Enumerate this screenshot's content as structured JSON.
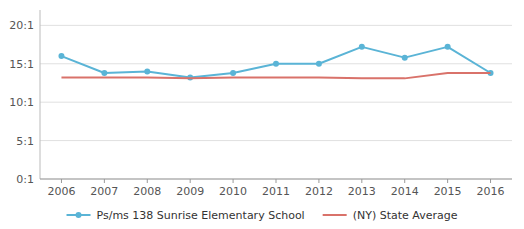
{
  "chart_data": {
    "type": "line",
    "x": [
      2006,
      2007,
      2008,
      2009,
      2010,
      2011,
      2012,
      2013,
      2014,
      2015,
      2016
    ],
    "series": [
      {
        "name": "Ps/ms 138 Sunrise Elementary School",
        "color": "#5ab4d6",
        "marker": "circle",
        "values": [
          16.0,
          13.8,
          14.0,
          13.2,
          13.8,
          15.0,
          15.0,
          17.2,
          15.8,
          17.2,
          13.8
        ]
      },
      {
        "name": "(NY) State Average",
        "color": "#d9726a",
        "marker": "none",
        "values": [
          13.2,
          13.2,
          13.2,
          13.1,
          13.2,
          13.2,
          13.2,
          13.1,
          13.1,
          13.8,
          13.8
        ]
      }
    ],
    "xlim": [
      2005.5,
      2016.5
    ],
    "xticks": [
      2006,
      2007,
      2008,
      2009,
      2010,
      2011,
      2012,
      2013,
      2014,
      2015,
      2016
    ],
    "ylim": [
      0,
      22
    ],
    "yticks": [
      {
        "value": 0,
        "label": "0:1"
      },
      {
        "value": 5,
        "label": "5:1"
      },
      {
        "value": 10,
        "label": "10:1"
      },
      {
        "value": 15,
        "label": "15:1"
      },
      {
        "value": 20,
        "label": "20:1"
      }
    ],
    "grid": true,
    "legend": "bottom"
  }
}
